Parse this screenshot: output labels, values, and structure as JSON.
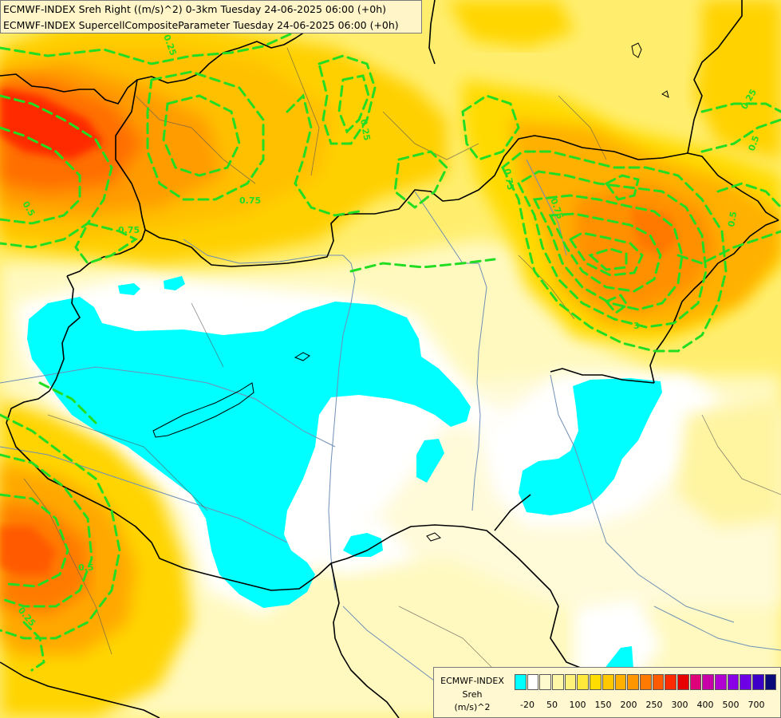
{
  "title": {
    "line1": "ECMWF-INDEX Sreh Right ((m/s)^2) 0-3km Tuesday 24-06-2025 06:00 (+0h)",
    "line2": "ECMWF-INDEX SupercellCompositeParameter Tuesday 24-06-2025 06:00 (+0h)"
  },
  "legend": {
    "line1": "ECMWF-INDEX",
    "line2": "Sreh",
    "line3": "(m/s)^2",
    "colors": [
      "#00ffff",
      "#ffffff",
      "#fffacd",
      "#fff7a8",
      "#fff27a",
      "#ffea3c",
      "#ffdd00",
      "#ffc800",
      "#ffb000",
      "#ff9600",
      "#ff7a00",
      "#ff5a00",
      "#ff2a00",
      "#e80000",
      "#e0007a",
      "#c800a8",
      "#b000d2",
      "#8a00e6",
      "#6e00e6",
      "#3c00c8",
      "#0a0a7a"
    ],
    "tick_labels": [
      "-20",
      "50",
      "100",
      "150",
      "200",
      "250",
      "300",
      "400",
      "500",
      "700"
    ]
  },
  "contour_labels": [
    "0.25",
    "0.25",
    "0.25",
    "0.25",
    "0.5",
    "0.5",
    "0.5",
    "0.5",
    "0.75",
    "0.75",
    "0.75",
    "0.75",
    "3"
  ]
}
